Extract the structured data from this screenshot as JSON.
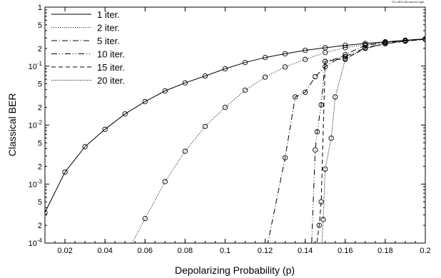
{
  "chart_data": {
    "type": "line",
    "tag": "CC-URC-SD-mem4-3.gle",
    "xlabel": "Depolarizing Probability (p)",
    "ylabel": "Classical BER",
    "xlim": [
      0.01,
      0.2
    ],
    "ylim": [
      0.0001,
      1
    ],
    "yscale": "log",
    "legend_position": "top-left",
    "x_ticks": [
      "0.02",
      "0.04",
      "0.06",
      "0.08",
      "0.1",
      "0.12",
      "0.14",
      "0.16",
      "0.18",
      "0.2"
    ],
    "y_major_ticks": [
      {
        "base": "",
        "exp": "",
        "plain": "1"
      },
      {
        "base": "10",
        "exp": "-1",
        "plain": ""
      },
      {
        "base": "10",
        "exp": "-2",
        "plain": ""
      },
      {
        "base": "10",
        "exp": "-3",
        "plain": ""
      },
      {
        "base": "10",
        "exp": "-4",
        "plain": ""
      }
    ],
    "y_minor_labels": [
      "2",
      "5"
    ],
    "series": [
      {
        "name": "1 iter.",
        "dash": "solid",
        "x": [
          0.01,
          0.02,
          0.03,
          0.04,
          0.05,
          0.06,
          0.07,
          0.08,
          0.09,
          0.1,
          0.11,
          0.12,
          0.13,
          0.14,
          0.15,
          0.16,
          0.17,
          0.18,
          0.19,
          0.2
        ],
        "y": [
          0.00033,
          0.0016,
          0.0043,
          0.0085,
          0.0155,
          0.025,
          0.038,
          0.052,
          0.068,
          0.09,
          0.115,
          0.14,
          0.162,
          0.185,
          0.205,
          0.225,
          0.242,
          0.258,
          0.274,
          0.29
        ]
      },
      {
        "name": "2 iter.",
        "dash": "dotted",
        "x": [
          0.05,
          0.06,
          0.07,
          0.08,
          0.09,
          0.1,
          0.11,
          0.12,
          0.13,
          0.14,
          0.15,
          0.16,
          0.17,
          0.18,
          0.19,
          0.2
        ],
        "y": [
          6e-05,
          0.00026,
          0.0011,
          0.0036,
          0.0095,
          0.02,
          0.039,
          0.065,
          0.097,
          0.13,
          0.17,
          0.205,
          0.23,
          0.255,
          0.275,
          0.29
        ]
      },
      {
        "name": "5 iter.",
        "dash": "dashdot",
        "x": [
          0.12,
          0.13,
          0.135,
          0.14,
          0.145,
          0.15,
          0.16,
          0.17,
          0.18,
          0.19,
          0.2
        ],
        "y": [
          6e-05,
          0.0028,
          0.03,
          0.036,
          0.066,
          0.098,
          0.157,
          0.225,
          0.25,
          0.27,
          0.29
        ]
      },
      {
        "name": "10 iter.",
        "dash": "dashdotdot",
        "x": [
          0.143,
          0.145,
          0.146,
          0.148,
          0.15,
          0.16,
          0.17,
          0.18,
          0.19,
          0.2
        ],
        "y": [
          6e-05,
          0.0038,
          0.0077,
          0.022,
          0.12,
          0.145,
          0.205,
          0.24,
          0.265,
          0.285
        ]
      },
      {
        "name": "15 iter.",
        "dash": "dashed",
        "x": [
          0.145,
          0.147,
          0.148,
          0.15,
          0.16,
          0.17,
          0.18,
          0.19,
          0.2
        ],
        "y": [
          6e-05,
          0.0002,
          0.0005,
          0.12,
          0.135,
          0.2,
          0.24,
          0.265,
          0.285
        ]
      },
      {
        "name": "20 iter.",
        "dash": "finedot",
        "x": [
          0.148,
          0.149,
          0.15,
          0.153,
          0.155,
          0.16,
          0.17,
          0.18,
          0.19,
          0.2
        ],
        "y": [
          6e-05,
          0.00025,
          0.0018,
          0.006,
          0.03,
          0.13,
          0.2,
          0.24,
          0.265,
          0.285
        ]
      }
    ],
    "markers_on": [
      "1 iter.",
      "2 iter.",
      "5 iter.",
      "10 iter.",
      "15 iter.",
      "20 iter."
    ]
  }
}
